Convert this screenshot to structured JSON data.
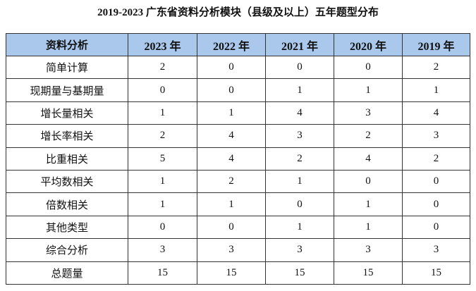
{
  "title": "2019-2023 广东省资料分析模块（县级及以上）五年题型分布",
  "table": {
    "headers": [
      "资料分析",
      "2023 年",
      "2022 年",
      "2021 年",
      "2020 年",
      "2019 年"
    ],
    "rows": [
      {
        "label": "简单计算",
        "values": [
          "2",
          "0",
          "0",
          "0",
          "2"
        ]
      },
      {
        "label": "现期量与基期量",
        "values": [
          "0",
          "0",
          "1",
          "1",
          "1"
        ]
      },
      {
        "label": "增长量相关",
        "values": [
          "1",
          "1",
          "4",
          "3",
          "4"
        ]
      },
      {
        "label": "增长率相关",
        "values": [
          "2",
          "4",
          "3",
          "2",
          "3"
        ]
      },
      {
        "label": "比重相关",
        "values": [
          "5",
          "4",
          "2",
          "4",
          "2"
        ]
      },
      {
        "label": "平均数相关",
        "values": [
          "1",
          "2",
          "1",
          "0",
          "0"
        ]
      },
      {
        "label": "倍数相关",
        "values": [
          "1",
          "1",
          "0",
          "1",
          "0"
        ]
      },
      {
        "label": "其他类型",
        "values": [
          "0",
          "0",
          "1",
          "1",
          "0"
        ]
      },
      {
        "label": "综合分析",
        "values": [
          "3",
          "3",
          "3",
          "3",
          "3"
        ]
      },
      {
        "label": "总题量",
        "values": [
          "15",
          "15",
          "15",
          "15",
          "15"
        ]
      }
    ]
  },
  "colors": {
    "header_background": "#a9c8ec",
    "border": "#333333"
  }
}
